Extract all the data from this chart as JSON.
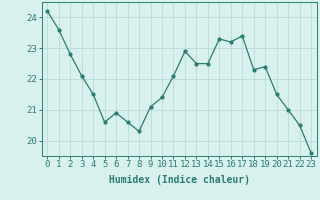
{
  "x": [
    0,
    1,
    2,
    3,
    4,
    5,
    6,
    7,
    8,
    9,
    10,
    11,
    12,
    13,
    14,
    15,
    16,
    17,
    18,
    19,
    20,
    21,
    22,
    23
  ],
  "y": [
    24.2,
    23.6,
    22.8,
    22.1,
    21.5,
    20.6,
    20.9,
    20.6,
    20.3,
    21.1,
    21.4,
    22.1,
    22.9,
    22.5,
    22.5,
    23.3,
    23.2,
    23.4,
    22.3,
    22.4,
    21.5,
    21.0,
    20.5,
    19.6
  ],
  "line_color": "#2d7d6f",
  "marker": "o",
  "marker_size": 2,
  "bg_color": "#d8f0ee",
  "grid_color": "#b8dbd8",
  "axis_color": "#2d7d6f",
  "xlabel": "Humidex (Indice chaleur)",
  "xlim": [
    -0.5,
    23.5
  ],
  "ylim": [
    19.5,
    24.5
  ],
  "yticks": [
    20,
    21,
    22,
    23,
    24
  ],
  "xticks": [
    0,
    1,
    2,
    3,
    4,
    5,
    6,
    7,
    8,
    9,
    10,
    11,
    12,
    13,
    14,
    15,
    16,
    17,
    18,
    19,
    20,
    21,
    22,
    23
  ],
  "xlabel_fontsize": 7,
  "tick_fontsize": 6.5
}
